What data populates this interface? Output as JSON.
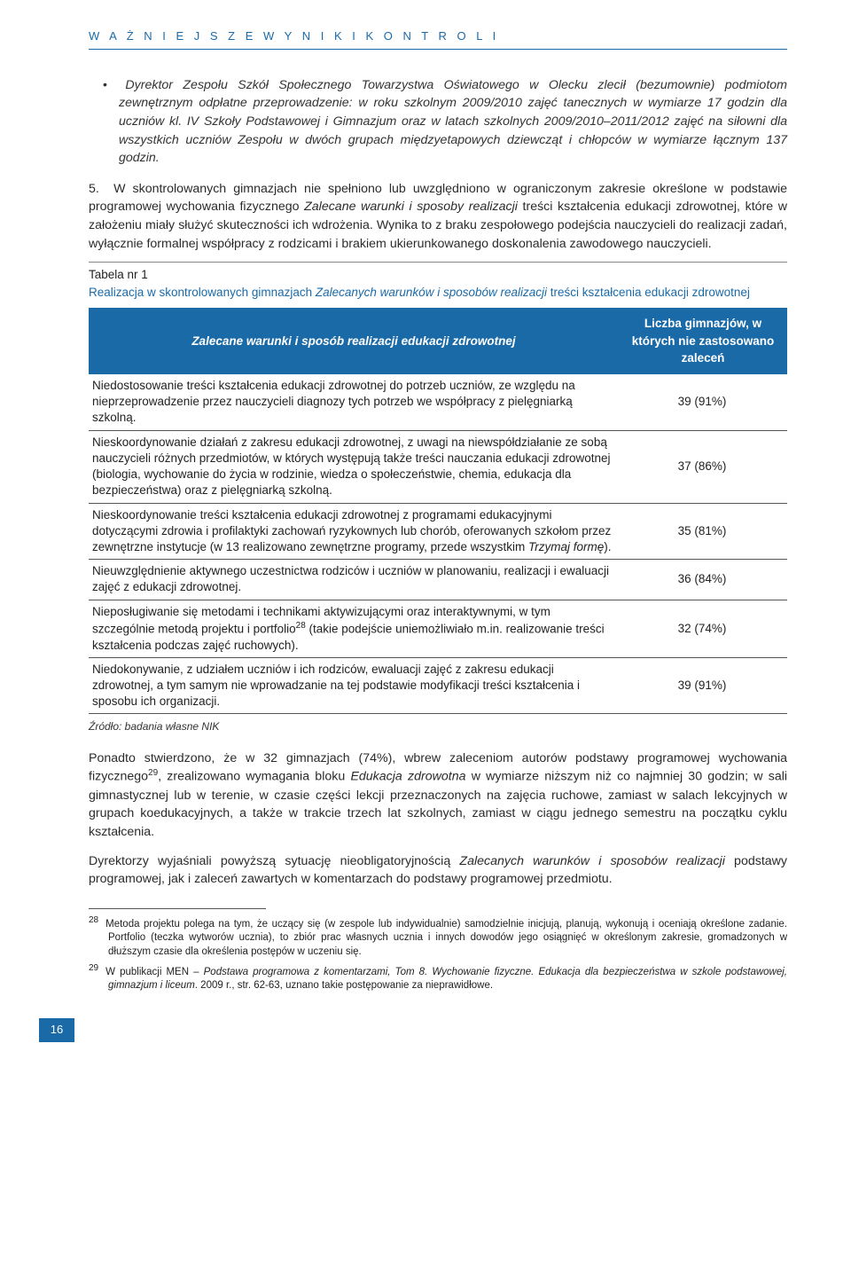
{
  "header": "W A Ż N I E J S Z E   W Y N I K I   K O N T R O L I",
  "bullet": {
    "lead": "Dyrektor Zespołu Szkół Społecznego Towarzystwa Oświatowego w Olecku",
    "rest1": " zlecił (bezumownie) podmiotom zewnętrznym odpłatne przeprowadzenie: w roku szkolnym 2009/2010 zajęć tanecznych w wymiarze 17 godzin dla uczniów kl. IV Szkoły Podstawowej i Gimnazjum oraz w latach szkolnych 2009/2010–2011/2012 zajęć na siłowni dla wszystkich uczniów Zespołu w dwóch grupach międzyetapowych dziewcząt i chłopców w wymiarze łącznym 137 godzin."
  },
  "para5": {
    "num": "5.",
    "t1": "W skontrolowanych gimnazjach nie spełniono lub uwzględniono w ograniczonym zakresie określone w podstawie programowej wychowania fizycznego ",
    "it1": "Zalecane warunki i sposoby realizacji",
    "t2": " treści kształcenia edukacji zdrowotnej, które w założeniu miały służyć skuteczności ich wdrożenia. Wynika to z braku zespołowego podejścia nauczycieli do realizacji zadań, wyłącznie formalnej współpracy z rodzicami i brakiem ukierunkowanego doskonalenia zawodowego nauczycieli."
  },
  "tableCaption": {
    "line1": "Tabela nr 1",
    "line2a": "Realizacja w skontrolowanych gimnazjach ",
    "line2b": "Zalecanych warunków i sposobów realizacji",
    "line2c": " treści kształcenia edukacji zdrowotnej"
  },
  "tableHead": {
    "c1": "Zalecane warunki i sposób realizacji edukacji zdrowotnej",
    "c2": "Liczba gimnazjów, w których nie zastosowano zaleceń"
  },
  "rows": [
    {
      "t": "Niedostosowanie treści kształcenia edukacji zdrowotnej do potrzeb uczniów, ze względu na nieprzeprowadzenie przez nauczycieli diagnozy tych potrzeb we współpracy z pielęgniarką szkolną.",
      "v": "39 (91%)"
    },
    {
      "t": "Nieskoordynowanie działań z zakresu edukacji zdrowotnej, z uwagi na niewspółdziałanie ze sobą nauczycieli różnych przedmiotów, w których występują także treści nauczania edukacji zdrowotnej (biologia, wychowanie do życia w rodzinie, wiedza o społeczeństwie, chemia, edukacja dla bezpieczeństwa) oraz z pielęgniarką szkolną.",
      "v": "37 (86%)"
    },
    {
      "t_pre": "Nieskoordynowanie treści kształcenia edukacji zdrowotnej z programami edukacyjnymi dotyczącymi zdrowia i profilaktyki zachowań ryzykownych lub chorób, oferowanych szkołom przez zewnętrzne instytucje (w 13 realizowano zewnętrzne programy, przede wszystkim ",
      "t_it": "Trzymaj formę",
      "t_post": ").",
      "v": "35 (81%)"
    },
    {
      "t": "Nieuwzględnienie aktywnego uczestnictwa rodziców i uczniów w planowaniu, realizacji i ewaluacji zajęć z edukacji zdrowotnej.",
      "v": "36 (84%)"
    },
    {
      "t_pre": "Nieposługiwanie się metodami i technikami aktywizującymi oraz interaktywnymi, w tym szczególnie metodą projektu i portfolio",
      "sup": "28",
      "t_post": " (takie podejście uniemożliwiało m.in. realizowanie treści kształcenia podczas zajęć ruchowych).",
      "v": "32 (74%)"
    },
    {
      "t": "Niedokonywanie, z udziałem uczniów i ich rodziców, ewaluacji zajęć z zakresu edukacji zdrowotnej, a tym samym nie wprowadzanie na tej podstawie modyfikacji treści kształcenia i sposobu ich organizacji.",
      "v": "39 (91%)"
    }
  ],
  "source": "Źródło: badania własne NIK",
  "bodyA": {
    "t1": "Ponadto stwierdzono, że w 32 gimnazjach (74%), wbrew zaleceniom autorów podstawy programowej wychowania fizycznego",
    "sup": "29",
    "t2": ", zrealizowano wymagania bloku ",
    "it": "Edukacja zdrowotna",
    "t3": " w wymiarze niższym niż co najmniej 30 godzin; w sali gimnastycznej lub w terenie, w czasie części lekcji przeznaczonych na zajęcia ruchowe, zamiast w salach lekcyjnych w grupach koedukacyjnych, a także w trakcie trzech lat szkolnych, zamiast w ciągu jednego semestru na początku cyklu kształcenia."
  },
  "bodyB": {
    "t1": "Dyrektorzy wyjaśniali powyższą sytuację nieobligatoryjnością ",
    "it": "Zalecanych warunków i sposobów realizacji",
    "t2": " podstawy programowej, jak i zaleceń zawartych w komentarzach do podstawy programowej przedmiotu."
  },
  "fn28": {
    "num": "28",
    "text": "Metoda projektu polega na tym, że uczący się (w zespole lub indywidualnie) samodzielnie inicjują, planują, wykonują i oceniają określone zadanie. Portfolio (teczka wytworów ucznia), to zbiór prac własnych ucznia i innych dowodów jego osiągnięć w określonym zakresie, gromadzonych w dłuższym czasie dla określenia postępów w uczeniu się."
  },
  "fn29": {
    "num": "29",
    "t1": "W publikacji MEN – ",
    "it": "Podstawa programowa z komentarzami, Tom 8. Wychowanie fizyczne. Edukacja dla bezpieczeństwa w szkole podstawowej, gimnazjum i liceum",
    "t2": ". 2009 r., str. 62-63, uznano takie postępowanie za nieprawidłowe."
  },
  "pageNum": "16",
  "colors": {
    "brand": "#1a6aa8",
    "text": "#2b2b2b",
    "rule": "#555555"
  }
}
